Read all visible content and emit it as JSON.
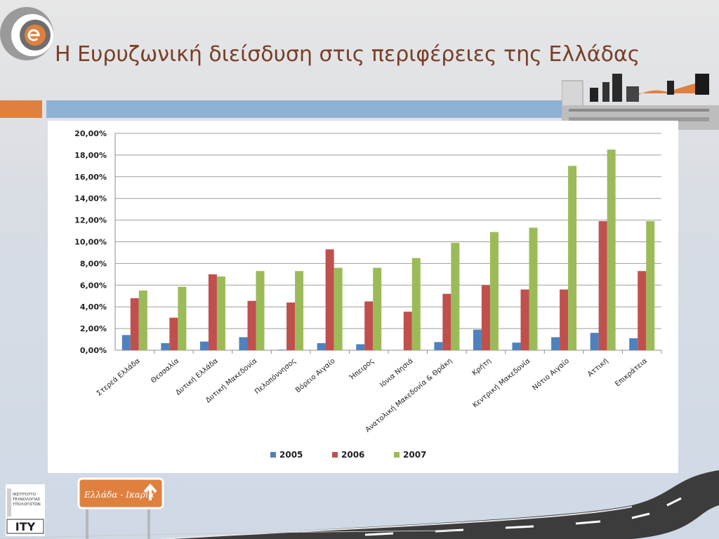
{
  "slide": {
    "title": "Η Ευρυζωνική διείσδυση στις περιφέρειες της Ελλάδας",
    "sign_text": "Ελλάδα - Ικαρία",
    "inst_logo": {
      "lines": [
        "ΙΝΣΤΙΤΟΥΤΟ",
        "ΤΕΧΝΟΛΟΓΙΑΣ",
        "ΥΠΟΛΟΓΙΣΤΩΝ"
      ],
      "short": "ΙΤΥ"
    },
    "colors": {
      "accent_orange": "#e0803f",
      "accent_blue": "#8fb1d4",
      "title": "#7a3e26"
    }
  },
  "chart_data": {
    "type": "bar",
    "title": "",
    "xlabel": "",
    "ylabel": "",
    "ylim": [
      0,
      20
    ],
    "y_ticks": [
      "0,00%",
      "2,00%",
      "4,00%",
      "6,00%",
      "8,00%",
      "10,00%",
      "12,00%",
      "14,00%",
      "16,00%",
      "18,00%",
      "20,00%"
    ],
    "grid": true,
    "legend_position": "bottom",
    "categories": [
      "Στερεά Ελλάδα",
      "Θεσσαλία",
      "Δυτική Ελλάδα",
      "Δυτική Μακεδονία",
      "Πελοπόννησος",
      "Βόρειο Αιγαίο",
      "Ήπειρος",
      "Ιόνια Νησιά",
      "Ανατολική Μακεδονία & Θράκη",
      "Κρήτη",
      "Κεντρική Μακεδονία",
      "Νότιο Αιγαίο",
      "Αττική",
      "Επικράτεια"
    ],
    "series": [
      {
        "name": "2005",
        "color": "#4f81bd",
        "values": [
          1.4,
          0.65,
          0.8,
          1.2,
          0.05,
          0.65,
          0.55,
          0.0,
          0.75,
          1.9,
          0.7,
          1.2,
          1.6,
          1.1
        ]
      },
      {
        "name": "2006",
        "color": "#c0504d",
        "values": [
          4.8,
          3.0,
          7.0,
          4.55,
          4.4,
          9.3,
          4.5,
          3.55,
          5.2,
          6.0,
          5.6,
          5.6,
          11.9,
          7.3
        ]
      },
      {
        "name": "2007",
        "color": "#9bbb59",
        "values": [
          5.5,
          5.85,
          6.8,
          7.3,
          7.3,
          7.6,
          7.6,
          8.5,
          9.9,
          10.9,
          11.3,
          17.0,
          18.5,
          11.9
        ]
      }
    ]
  }
}
